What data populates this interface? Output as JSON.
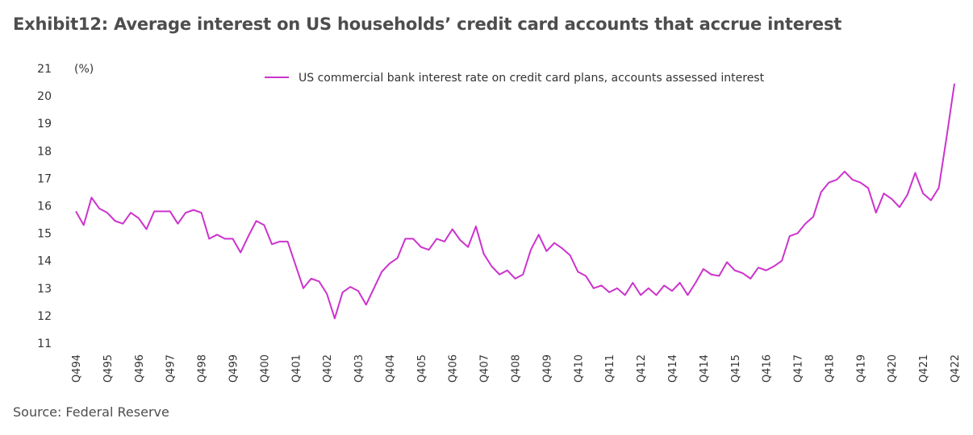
{
  "title": "Exhibit12: Average interest on US households’ credit card accounts that accrue interest",
  "source": "Source: Federal Reserve",
  "colors": {
    "series": "#cc33cc",
    "text": "#333333",
    "title": "#4d4d4d"
  },
  "chart_data": {
    "type": "line",
    "y_unit_label": "(%)",
    "ylim": [
      11,
      21
    ],
    "y_ticks": [
      "11",
      "12",
      "13",
      "14",
      "15",
      "16",
      "17",
      "18",
      "19",
      "20",
      "21"
    ],
    "grid": false,
    "legend_position": "top-center",
    "x_tick_labels": [
      "Q494",
      "Q495",
      "Q496",
      "Q497",
      "Q498",
      "Q499",
      "Q400",
      "Q401",
      "Q402",
      "Q403",
      "Q404",
      "Q405",
      "Q406",
      "Q407",
      "Q408",
      "Q409",
      "Q410",
      "Q411",
      "Q412",
      "Q414",
      "Q414",
      "Q415",
      "Q416",
      "Q417",
      "Q418",
      "Q419",
      "Q420",
      "Q421",
      "Q422"
    ],
    "series": [
      {
        "name": "US commercial bank interest rate on credit card plans, accounts assessed interest",
        "values": [
          15.8,
          15.3,
          16.3,
          15.9,
          15.75,
          15.45,
          15.35,
          15.75,
          15.55,
          15.15,
          15.8,
          15.8,
          15.8,
          15.35,
          15.75,
          15.85,
          15.75,
          14.8,
          14.95,
          14.8,
          14.8,
          14.3,
          14.9,
          15.45,
          15.3,
          14.6,
          14.7,
          14.7,
          13.85,
          13.0,
          13.35,
          13.25,
          12.8,
          11.9,
          12.85,
          13.05,
          12.9,
          12.4,
          13.0,
          13.6,
          13.9,
          14.1,
          14.8,
          14.8,
          14.5,
          14.4,
          14.8,
          14.7,
          15.15,
          14.75,
          14.5,
          15.25,
          14.25,
          13.8,
          13.5,
          13.65,
          13.35,
          13.5,
          14.4,
          14.95,
          14.35,
          14.65,
          14.45,
          14.2,
          13.6,
          13.45,
          13.0,
          13.1,
          12.85,
          13.0,
          12.75,
          13.2,
          12.75,
          13.0,
          12.75,
          13.1,
          12.9,
          13.2,
          12.75,
          13.2,
          13.7,
          13.5,
          13.45,
          13.95,
          13.65,
          13.55,
          13.35,
          13.75,
          13.65,
          13.8,
          14.0,
          14.9,
          15.0,
          15.35,
          15.6,
          16.5,
          16.85,
          16.95,
          17.25,
          16.95,
          16.85,
          16.65,
          15.75,
          16.45,
          16.25,
          15.95,
          16.4,
          17.2,
          16.45,
          16.2,
          16.65,
          18.5,
          20.45
        ]
      }
    ]
  }
}
